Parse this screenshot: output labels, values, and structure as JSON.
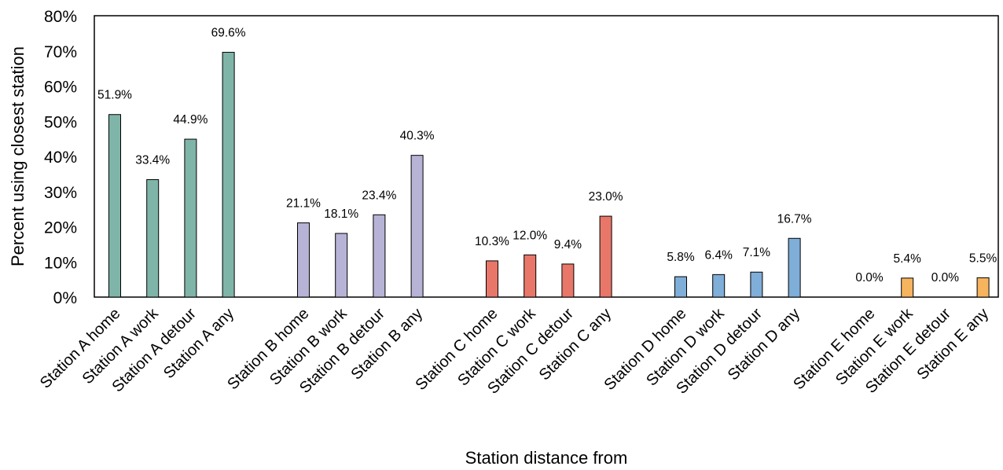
{
  "chart_data": {
    "type": "bar",
    "xlabel": "Station distance from",
    "ylabel": "Percent using closest station",
    "ylim": [
      0,
      80
    ],
    "y_ticks": [
      "0%",
      "10%",
      "20%",
      "30%",
      "40%",
      "50%",
      "60%",
      "70%",
      "80%"
    ],
    "grid": false,
    "legend": "none",
    "groups": [
      {
        "color": "#7fb5a8",
        "bars": [
          {
            "category": "Station A home",
            "value": 51.9,
            "label": "51.9%"
          },
          {
            "category": "Station A work",
            "value": 33.4,
            "label": "33.4%"
          },
          {
            "category": "Station A detour",
            "value": 44.9,
            "label": "44.9%"
          },
          {
            "category": "Station A any",
            "value": 69.6,
            "label": "69.6%"
          }
        ]
      },
      {
        "color": "#b7b3d6",
        "bars": [
          {
            "category": "Station B home",
            "value": 21.1,
            "label": "21.1%"
          },
          {
            "category": "Station B work",
            "value": 18.1,
            "label": "18.1%"
          },
          {
            "category": "Station B detour",
            "value": 23.4,
            "label": "23.4%"
          },
          {
            "category": "Station B any",
            "value": 40.3,
            "label": "40.3%"
          }
        ]
      },
      {
        "color": "#e8776a",
        "bars": [
          {
            "category": "Station C home",
            "value": 10.3,
            "label": "10.3%"
          },
          {
            "category": "Station C work",
            "value": 12.0,
            "label": "12.0%"
          },
          {
            "category": "Station C detour",
            "value": 9.4,
            "label": "9.4%"
          },
          {
            "category": "Station C any",
            "value": 23.0,
            "label": "23.0%"
          }
        ]
      },
      {
        "color": "#7faed8",
        "bars": [
          {
            "category": "Station D home",
            "value": 5.8,
            "label": "5.8%"
          },
          {
            "category": "Station D work",
            "value": 6.4,
            "label": "6.4%"
          },
          {
            "category": "Station D detour",
            "value": 7.1,
            "label": "7.1%"
          },
          {
            "category": "Station D any",
            "value": 16.7,
            "label": "16.7%"
          }
        ]
      },
      {
        "color": "#f7b45e",
        "bars": [
          {
            "category": "Station E home",
            "value": 0.0,
            "label": "0.0%"
          },
          {
            "category": "Station E work",
            "value": 5.4,
            "label": "5.4%"
          },
          {
            "category": "Station E detour",
            "value": 0.0,
            "label": "0.0%"
          },
          {
            "category": "Station E any",
            "value": 5.5,
            "label": "5.5%"
          }
        ]
      }
    ]
  }
}
